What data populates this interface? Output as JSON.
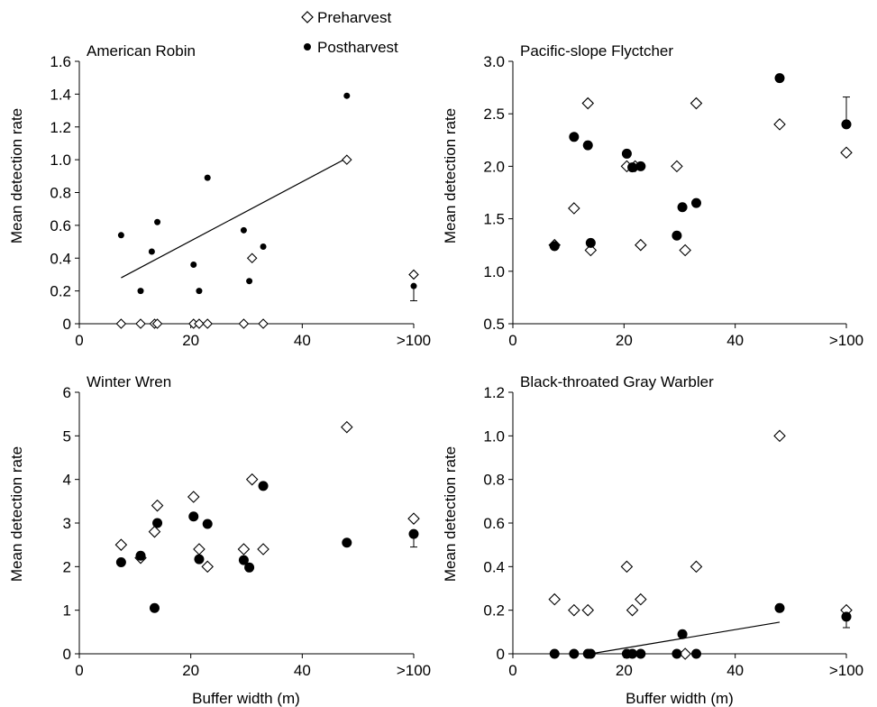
{
  "legend": {
    "pre_label": "Preharvest",
    "post_label": "Postharvest"
  },
  "chart_data": [
    {
      "type": "scatter",
      "title": "American Robin",
      "ylabel": "Mean detection rate",
      "xlabel": "",
      "xlim": [
        0,
        60
      ],
      "ylim": [
        0,
        1.6
      ],
      "xticks": [
        "0",
        "20",
        "40",
        ">100"
      ],
      "xtick_values": [
        0,
        20,
        40,
        60
      ],
      "yticks": [
        "0",
        "0.2",
        "0.4",
        "0.6",
        "0.8",
        "1.0",
        "1.2",
        "1.4",
        "1.6"
      ],
      "ytick_values": [
        0,
        0.2,
        0.4,
        0.6,
        0.8,
        1.0,
        1.2,
        1.4,
        1.6
      ],
      "series": [
        {
          "name": "Preharvest",
          "marker": "open-diamond",
          "x": [
            7.5,
            11,
            13.5,
            14,
            20.5,
            21.5,
            23,
            29.5,
            31,
            33,
            48,
            60
          ],
          "y": [
            0,
            0,
            0,
            0,
            0,
            0,
            0,
            0,
            0.4,
            0,
            1.0,
            0.3
          ]
        },
        {
          "name": "Postharvest",
          "marker": "filled-circle",
          "x": [
            7.5,
            11,
            13,
            14,
            20.5,
            21.5,
            23,
            29.5,
            30.5,
            33,
            48,
            60
          ],
          "y": [
            0.54,
            0.2,
            0.44,
            0.62,
            0.36,
            0.2,
            0.89,
            0.57,
            0.26,
            0.47,
            1.39,
            0.23
          ],
          "error_point": {
            "x": 60,
            "y": 0.23,
            "lower": 0.14
          }
        }
      ],
      "trendline": {
        "x": [
          7.5,
          48
        ],
        "y": [
          0.28,
          1.01
        ]
      }
    },
    {
      "type": "scatter",
      "title": "Pacific-slope Flyctcher",
      "ylabel": "Mean detection rate",
      "xlabel": "",
      "xlim": [
        0,
        60
      ],
      "ylim": [
        0.5,
        3.0
      ],
      "xticks": [
        "0",
        "20",
        "40",
        ">100"
      ],
      "xtick_values": [
        0,
        20,
        40,
        60
      ],
      "yticks": [
        "0.5",
        "1.0",
        "1.5",
        "2.0",
        "2.5",
        "3.0"
      ],
      "ytick_values": [
        0.5,
        1.0,
        1.5,
        2.0,
        2.5,
        3.0
      ],
      "series": [
        {
          "name": "Preharvest",
          "marker": "open-diamond",
          "x": [
            7.5,
            11,
            13.5,
            14,
            20.5,
            22,
            23,
            29.5,
            31,
            33,
            48,
            60
          ],
          "y": [
            1.25,
            1.6,
            2.6,
            1.2,
            2.0,
            2.0,
            1.25,
            2.0,
            1.2,
            2.6,
            2.4,
            2.13
          ]
        },
        {
          "name": "Postharvest",
          "marker": "filled-circle",
          "x": [
            7.5,
            11,
            13.5,
            14,
            20.5,
            21.5,
            23,
            29.5,
            30.5,
            33,
            48,
            60
          ],
          "y": [
            1.24,
            2.28,
            2.2,
            1.27,
            2.12,
            1.99,
            2.0,
            1.34,
            1.61,
            1.65,
            2.84,
            2.4
          ],
          "error_point": {
            "x": 60,
            "y": 2.4,
            "upper": 2.66
          }
        }
      ]
    },
    {
      "type": "scatter",
      "title": "Winter Wren",
      "ylabel": "Mean detection rate",
      "xlabel": "Buffer width (m)",
      "xlim": [
        0,
        60
      ],
      "ylim": [
        0,
        6
      ],
      "xticks": [
        "0",
        "20",
        "40",
        ">100"
      ],
      "xtick_values": [
        0,
        20,
        40,
        60
      ],
      "yticks": [
        "0",
        "1",
        "2",
        "3",
        "4",
        "5",
        "6"
      ],
      "ytick_values": [
        0,
        1,
        2,
        3,
        4,
        5,
        6
      ],
      "series": [
        {
          "name": "Preharvest",
          "marker": "open-diamond",
          "x": [
            7.5,
            11,
            13.5,
            14,
            20.5,
            21.5,
            23,
            29.5,
            31,
            33,
            48,
            60
          ],
          "y": [
            2.5,
            2.2,
            2.8,
            3.4,
            3.6,
            2.4,
            2.0,
            2.4,
            4.0,
            2.4,
            5.2,
            3.1
          ]
        },
        {
          "name": "Postharvest",
          "marker": "filled-circle",
          "x": [
            7.5,
            11,
            13.5,
            14,
            20.5,
            21.5,
            23,
            29.5,
            30.5,
            33,
            48,
            60
          ],
          "y": [
            2.1,
            2.25,
            1.05,
            3.0,
            3.15,
            2.17,
            2.98,
            2.15,
            1.98,
            3.85,
            2.55,
            2.75
          ],
          "error_point": {
            "x": 60,
            "y": 2.75,
            "lower": 2.45
          }
        }
      ]
    },
    {
      "type": "scatter",
      "title": "Black-throated Gray Warbler",
      "ylabel": "Mean detection rate",
      "xlabel": "Buffer width (m)",
      "xlim": [
        0,
        60
      ],
      "ylim": [
        0,
        1.2
      ],
      "xticks": [
        "0",
        "20",
        "40",
        ">100"
      ],
      "xtick_values": [
        0,
        20,
        40,
        60
      ],
      "yticks": [
        "0",
        "0.2",
        "0.4",
        "0.6",
        "0.8",
        "1.0",
        "1.2"
      ],
      "ytick_values": [
        0,
        0.2,
        0.4,
        0.6,
        0.8,
        1.0,
        1.2
      ],
      "series": [
        {
          "name": "Preharvest",
          "marker": "open-diamond",
          "x": [
            7.5,
            11,
            13.5,
            20.5,
            21.5,
            23,
            31,
            33,
            48,
            60
          ],
          "y": [
            0.25,
            0.2,
            0.2,
            0.4,
            0.2,
            0.25,
            0,
            0.4,
            1.0,
            0.2
          ]
        },
        {
          "name": "Postharvest",
          "marker": "filled-circle",
          "x": [
            7.5,
            11,
            13.5,
            14,
            20.5,
            21.5,
            23,
            29.5,
            30.5,
            33,
            48,
            60
          ],
          "y": [
            0,
            0,
            0,
            0,
            0,
            0,
            0,
            0,
            0.09,
            0,
            0.21,
            0.17
          ],
          "error_point": {
            "x": 60,
            "y": 0.17,
            "lower": 0.12
          }
        }
      ],
      "trendline": {
        "x": [
          14,
          48
        ],
        "y": [
          0,
          0.145
        ]
      }
    }
  ]
}
